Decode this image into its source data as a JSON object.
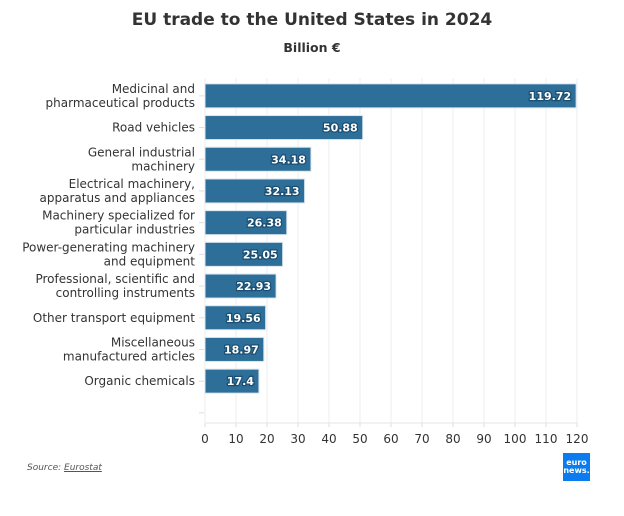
{
  "chart_data": {
    "type": "bar",
    "orientation": "horizontal",
    "title": "EU trade to the United States in 2024",
    "subtitle": "Billion €",
    "xlabel": "",
    "ylabel": "",
    "categories": [
      [
        "Medicinal and",
        "pharmaceutical products"
      ],
      [
        "Road vehicles"
      ],
      [
        "General industrial",
        "machinery"
      ],
      [
        "Electrical machinery,",
        "apparatus and appliances"
      ],
      [
        "Machinery specialized for",
        "particular industries"
      ],
      [
        "Power-generating machinery",
        "and equipment"
      ],
      [
        "Professional, scientific and",
        "controlling instruments"
      ],
      [
        "Other transport equipment"
      ],
      [
        "Miscellaneous",
        "manufactured articles"
      ],
      [
        "Organic chemicals"
      ]
    ],
    "values": [
      119.72,
      50.88,
      34.18,
      32.13,
      26.38,
      25.05,
      22.93,
      19.56,
      18.97,
      17.4
    ],
    "value_labels": [
      "119.72",
      "50.88",
      "34.18",
      "32.13",
      "26.38",
      "25.05",
      "22.93",
      "19.56",
      "18.97",
      "17.4"
    ],
    "xlim": [
      0,
      120
    ],
    "xticks": [
      0,
      10,
      20,
      30,
      40,
      50,
      60,
      70,
      80,
      90,
      100,
      110,
      120
    ],
    "grid": true,
    "bar_color": "#2e6f99"
  },
  "footer": {
    "source_prefix": "Source: ",
    "source_link": "Eurostat",
    "logo_line1": "euro",
    "logo_line2": "news.",
    "logo_color": "#0a7cf0"
  }
}
